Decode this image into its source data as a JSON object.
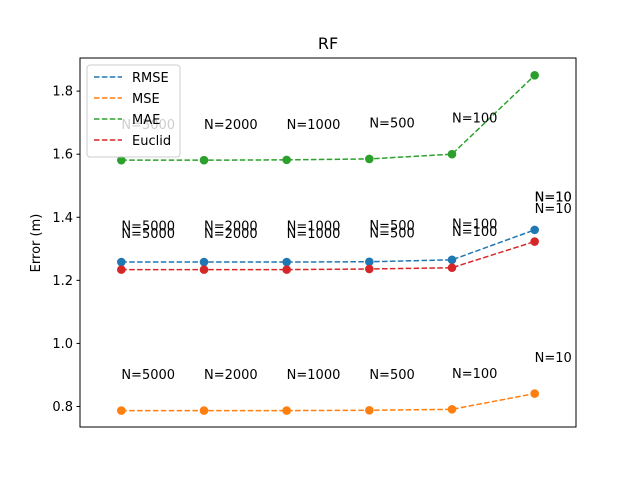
{
  "chart_data": {
    "type": "line",
    "title": "RF",
    "xlabel": "",
    "ylabel": "Error (m)",
    "x": [
      1,
      2,
      3,
      4,
      5,
      6
    ],
    "xlim": [
      0.5,
      6.5
    ],
    "ylim": [
      0.735,
      1.905
    ],
    "yticks": [
      0.8,
      1.0,
      1.2,
      1.4,
      1.6,
      1.8
    ],
    "ytick_labels": [
      "0.8",
      "1.0",
      "1.2",
      "1.4",
      "1.6",
      "1.8"
    ],
    "x_ticks_visible": false,
    "grid": false,
    "legend_position": "top-left",
    "series": [
      {
        "name": "RMSE",
        "color": "#1f77b4",
        "values": [
          1.258,
          1.258,
          1.258,
          1.259,
          1.265,
          1.36
        ]
      },
      {
        "name": "MSE",
        "color": "#ff7f0e",
        "values": [
          0.787,
          0.787,
          0.787,
          0.788,
          0.791,
          0.841
        ]
      },
      {
        "name": "MAE",
        "color": "#2ca02c",
        "values": [
          1.581,
          1.581,
          1.582,
          1.585,
          1.6,
          1.85
        ]
      },
      {
        "name": "Euclid",
        "color": "#d62728",
        "values": [
          1.234,
          1.234,
          1.234,
          1.236,
          1.24,
          1.323
        ]
      }
    ],
    "annotations": [
      {
        "x": 1,
        "y": 1.68,
        "text": "N=5000"
      },
      {
        "x": 2,
        "y": 1.68,
        "text": "N=2000"
      },
      {
        "x": 3,
        "y": 1.68,
        "text": "N=1000"
      },
      {
        "x": 4,
        "y": 1.685,
        "text": "N=500"
      },
      {
        "x": 5,
        "y": 1.7,
        "text": "N=100"
      },
      {
        "x": 6,
        "y": 1.45,
        "text": "N=10"
      },
      {
        "x": 1,
        "y": 1.358,
        "text": "N=5000"
      },
      {
        "x": 2,
        "y": 1.358,
        "text": "N=2000"
      },
      {
        "x": 3,
        "y": 1.358,
        "text": "N=1000"
      },
      {
        "x": 4,
        "y": 1.359,
        "text": "N=500"
      },
      {
        "x": 5,
        "y": 1.365,
        "text": "N=100"
      },
      {
        "x": 6,
        "y": 1.413,
        "text": "N=10"
      },
      {
        "x": 1,
        "y": 1.334,
        "text": "N=5000"
      },
      {
        "x": 2,
        "y": 1.334,
        "text": "N=2000"
      },
      {
        "x": 3,
        "y": 1.334,
        "text": "N=1000"
      },
      {
        "x": 4,
        "y": 1.336,
        "text": "N=500"
      },
      {
        "x": 5,
        "y": 1.34,
        "text": "N=100"
      },
      {
        "x": 6,
        "y": 1.45,
        "text": "N=10"
      },
      {
        "x": 1,
        "y": 0.887,
        "text": "N=5000"
      },
      {
        "x": 2,
        "y": 0.887,
        "text": "N=2000"
      },
      {
        "x": 3,
        "y": 0.887,
        "text": "N=1000"
      },
      {
        "x": 4,
        "y": 0.888,
        "text": "N=500"
      },
      {
        "x": 5,
        "y": 0.891,
        "text": "N=100"
      },
      {
        "x": 6,
        "y": 0.941,
        "text": "N=10"
      }
    ]
  }
}
